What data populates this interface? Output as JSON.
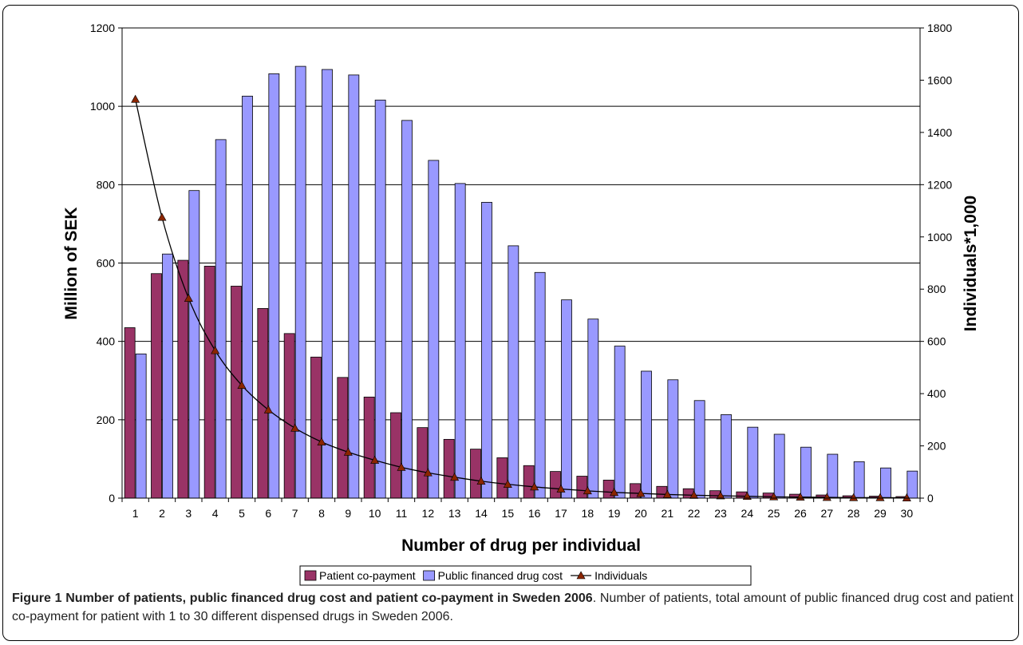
{
  "chart_data": {
    "type": "bar",
    "xlabel": "Number of drug per individual",
    "ylabel": "Million of SEK",
    "y2label": "Individuals*1,000",
    "ylim": [
      0,
      1200
    ],
    "y2lim": [
      0,
      1800
    ],
    "yticks": [
      "0",
      "200",
      "400",
      "600",
      "800",
      "1000",
      "1200"
    ],
    "y2ticks": [
      "0",
      "200",
      "400",
      "600",
      "800",
      "1000",
      "1200",
      "1400",
      "1600",
      "1800"
    ],
    "grid": true,
    "legend_position": "bottom",
    "categories": [
      "1",
      "2",
      "3",
      "4",
      "5",
      "6",
      "7",
      "8",
      "9",
      "10",
      "11",
      "12",
      "13",
      "14",
      "15",
      "16",
      "17",
      "18",
      "19",
      "20",
      "21",
      "22",
      "23",
      "24",
      "25",
      "26",
      "27",
      "28",
      "29",
      "30"
    ],
    "series": [
      {
        "name": "Patient co-payment",
        "kind": "bar",
        "axis": "left",
        "color": "#993366",
        "values": [
          435,
          573,
          607,
          592,
          541,
          484,
          420,
          360,
          308,
          258,
          218,
          180,
          150,
          125,
          103,
          83,
          68,
          56,
          46,
          37,
          30,
          24,
          19,
          16,
          13,
          10,
          8,
          6,
          5,
          4
        ]
      },
      {
        "name": "Public financed drug cost",
        "kind": "bar",
        "axis": "left",
        "color": "#9999ff",
        "values": [
          368,
          623,
          785,
          915,
          1026,
          1083,
          1102,
          1094,
          1080,
          1016,
          964,
          862,
          803,
          755,
          644,
          576,
          506,
          457,
          388,
          324,
          302,
          249,
          213,
          181,
          163,
          130,
          112,
          93,
          77,
          69
        ]
      },
      {
        "name": "Individuals",
        "kind": "line",
        "axis": "right",
        "color": "#000000",
        "marker_color": "#8b2500",
        "values": [
          1527,
          1075,
          765,
          565,
          432,
          338,
          268,
          215,
          176,
          145,
          118,
          97,
          80,
          65,
          53,
          43,
          35,
          28,
          22,
          18,
          14,
          11,
          9,
          7,
          5,
          4,
          3,
          2,
          2,
          1
        ]
      }
    ]
  },
  "caption": {
    "bold": "Figure 1 Number of patients, public financed drug cost and patient co-payment in Sweden 2006",
    "text": ". Number of patients, total amount of public financed drug cost and patient co-payment for patient with 1 to 30 different dispensed drugs in Sweden 2006."
  }
}
